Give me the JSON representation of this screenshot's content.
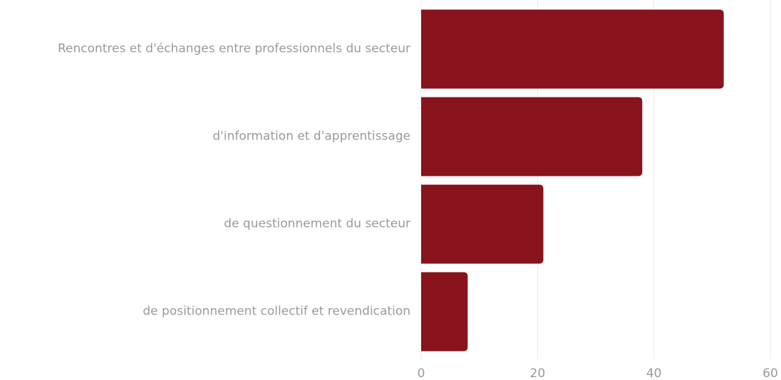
{
  "chart_data": {
    "type": "bar",
    "orientation": "horizontal",
    "categories": [
      "Rencontres et d'échanges entre professionnels du secteur",
      "d'information et d'apprentissage",
      "de questionnement du secteur",
      "de positionnement collectif et revendication"
    ],
    "values": [
      52,
      38,
      21,
      8
    ],
    "color": "#88131d",
    "xlim": [
      0,
      60
    ],
    "xticks": [
      0,
      20,
      40,
      60
    ],
    "grid": true
  }
}
